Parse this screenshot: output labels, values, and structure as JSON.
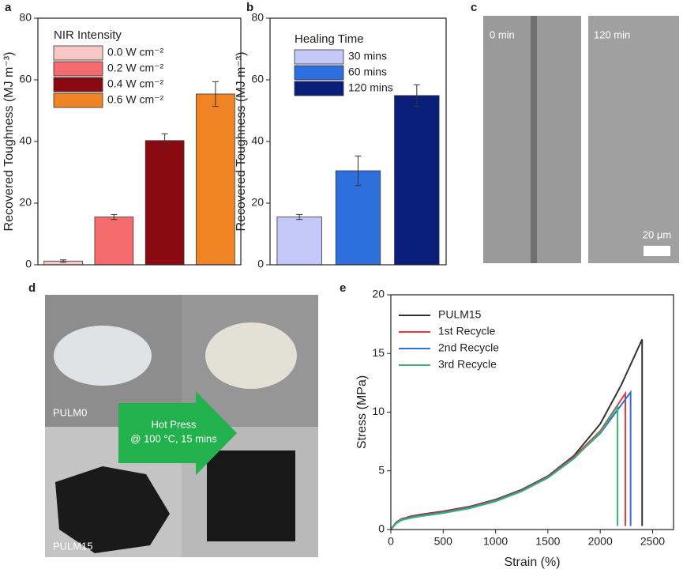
{
  "chart_data": [
    {
      "type": "bar",
      "ylabel": "Recovered Toughness (MJ m⁻³)",
      "legend_title": "NIR Intensity",
      "legend_labels": [
        "0.0 W cm⁻²",
        "0.2 W cm⁻²",
        "0.4 W cm⁻²",
        "0.6 W cm⁻²"
      ],
      "values": [
        1.2,
        15.5,
        40.3,
        55.4
      ],
      "errors": [
        0.4,
        0.8,
        2.2,
        4.0
      ],
      "colors": [
        "#f7c6c6",
        "#f66b6e",
        "#8b0a12",
        "#f08424"
      ],
      "ylim": [
        0,
        80
      ],
      "yticks": [
        0,
        20,
        40,
        60,
        80
      ]
    },
    {
      "type": "bar",
      "ylabel": "Recovered Toughness (MJ m⁻³)",
      "legend_title": "Healing Time",
      "legend_labels": [
        "30 mins",
        "60 mins",
        "120 mins"
      ],
      "values": [
        15.5,
        30.5,
        54.9
      ],
      "errors": [
        0.8,
        4.8,
        3.5
      ],
      "colors": [
        "#c3c8f8",
        "#2e6fde",
        "#0a1f7a"
      ],
      "ylim": [
        0,
        80
      ],
      "yticks": [
        0,
        20,
        40,
        60,
        80
      ]
    },
    {
      "type": "line",
      "xlabel": "Strain (%)",
      "ylabel": "Stress (MPa)",
      "xlim": [
        0,
        2700
      ],
      "xticks": [
        0,
        500,
        1000,
        1500,
        2000,
        2500
      ],
      "ylim": [
        0,
        20
      ],
      "yticks": [
        0,
        5,
        10,
        15,
        20
      ],
      "series": [
        {
          "name": "PULM15",
          "color": "#333333",
          "x": [
            0,
            50,
            100,
            200,
            300,
            500,
            750,
            1000,
            1250,
            1500,
            1750,
            2000,
            2200,
            2400,
            2400
          ],
          "values": [
            0,
            0.6,
            0.9,
            1.15,
            1.3,
            1.55,
            1.95,
            2.55,
            3.4,
            4.55,
            6.3,
            9.0,
            12.3,
            16.2,
            0.3
          ]
        },
        {
          "name": "1st Recycle",
          "color": "#e8393a",
          "x": [
            0,
            50,
            100,
            200,
            300,
            500,
            750,
            1000,
            1250,
            1500,
            1750,
            2000,
            2240,
            2240
          ],
          "values": [
            0,
            0.6,
            0.9,
            1.1,
            1.25,
            1.5,
            1.9,
            2.5,
            3.35,
            4.5,
            6.2,
            8.4,
            11.6,
            0.3
          ]
        },
        {
          "name": "2nd Recycle",
          "color": "#2f6fdd",
          "x": [
            0,
            50,
            100,
            200,
            300,
            500,
            750,
            1000,
            1250,
            1500,
            1750,
            2000,
            2290,
            2290
          ],
          "values": [
            0,
            0.55,
            0.85,
            1.05,
            1.2,
            1.45,
            1.85,
            2.45,
            3.3,
            4.45,
            6.1,
            8.2,
            11.7,
            0.3
          ]
        },
        {
          "name": "3rd Recycle",
          "color": "#3ab372",
          "x": [
            0,
            50,
            100,
            200,
            300,
            500,
            750,
            1000,
            1250,
            1500,
            1750,
            2000,
            2165,
            2165
          ],
          "values": [
            0,
            0.5,
            0.8,
            1.0,
            1.15,
            1.4,
            1.8,
            2.4,
            3.25,
            4.4,
            6.05,
            8.3,
            10.5,
            0.3
          ]
        }
      ]
    }
  ],
  "panel_labels": [
    "a",
    "b",
    "c",
    "d",
    "e"
  ],
  "images": {
    "c_left": "0 min",
    "c_right": "120 min",
    "scale": "20 μm",
    "d_top": "PULM0",
    "d_bottom": "PULM15",
    "arrow": [
      "Hot Press",
      "@ 100 °C, 15 mins"
    ]
  }
}
